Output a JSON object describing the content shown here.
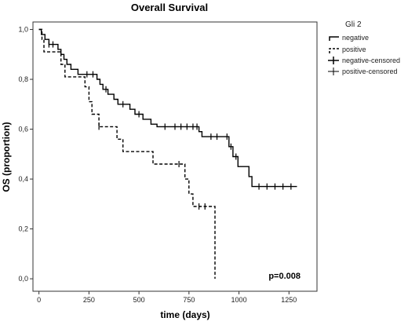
{
  "chart_data": {
    "type": "line",
    "title": "Overall Survival",
    "xlabel": "time (days)",
    "ylabel": "OS (proportion)",
    "xlim": [
      -30,
      1390
    ],
    "ylim": [
      -0.05,
      1.03
    ],
    "x_ticks": [
      0,
      250,
      500,
      750,
      1000,
      1250
    ],
    "y_ticks": [
      {
        "value": 0.0,
        "label": "0,0"
      },
      {
        "value": 0.2,
        "label": "0,2"
      },
      {
        "value": 0.4,
        "label": "0,4"
      },
      {
        "value": 0.6,
        "label": "0,6"
      },
      {
        "value": 0.8,
        "label": "0,8"
      },
      {
        "value": 1.0,
        "label": "1,0"
      }
    ],
    "grid": false,
    "legend": {
      "title": "Gli 2",
      "position": "top-right",
      "entries": [
        "negative",
        "positive",
        "negative-censored",
        "positive-censored"
      ]
    },
    "annotation": "p=0.008",
    "series": [
      {
        "name": "negative",
        "style": "solid",
        "points": [
          [
            0,
            1.0
          ],
          [
            12,
            0.98
          ],
          [
            30,
            0.96
          ],
          [
            50,
            0.94
          ],
          [
            95,
            0.92
          ],
          [
            110,
            0.9
          ],
          [
            125,
            0.88
          ],
          [
            140,
            0.86
          ],
          [
            160,
            0.84
          ],
          [
            195,
            0.82
          ],
          [
            290,
            0.8
          ],
          [
            305,
            0.78
          ],
          [
            320,
            0.76
          ],
          [
            345,
            0.74
          ],
          [
            375,
            0.72
          ],
          [
            395,
            0.7
          ],
          [
            455,
            0.68
          ],
          [
            480,
            0.66
          ],
          [
            520,
            0.64
          ],
          [
            560,
            0.62
          ],
          [
            590,
            0.61
          ],
          [
            800,
            0.59
          ],
          [
            815,
            0.57
          ],
          [
            950,
            0.53
          ],
          [
            970,
            0.49
          ],
          [
            995,
            0.45
          ],
          [
            1050,
            0.41
          ],
          [
            1065,
            0.37
          ],
          [
            1290,
            0.37
          ]
        ],
        "censored": [
          [
            50,
            0.94
          ],
          [
            70,
            0.94
          ],
          [
            240,
            0.82
          ],
          [
            270,
            0.82
          ],
          [
            335,
            0.76
          ],
          [
            420,
            0.7
          ],
          [
            500,
            0.66
          ],
          [
            630,
            0.61
          ],
          [
            680,
            0.61
          ],
          [
            710,
            0.61
          ],
          [
            740,
            0.61
          ],
          [
            770,
            0.61
          ],
          [
            790,
            0.61
          ],
          [
            860,
            0.57
          ],
          [
            890,
            0.57
          ],
          [
            940,
            0.57
          ],
          [
            960,
            0.53
          ],
          [
            985,
            0.49
          ],
          [
            1100,
            0.37
          ],
          [
            1140,
            0.37
          ],
          [
            1180,
            0.37
          ],
          [
            1220,
            0.37
          ],
          [
            1260,
            0.37
          ]
        ]
      },
      {
        "name": "positive",
        "style": "dashed",
        "points": [
          [
            0,
            1.0
          ],
          [
            15,
            0.96
          ],
          [
            25,
            0.91
          ],
          [
            110,
            0.86
          ],
          [
            130,
            0.81
          ],
          [
            230,
            0.77
          ],
          [
            250,
            0.71
          ],
          [
            265,
            0.66
          ],
          [
            300,
            0.61
          ],
          [
            390,
            0.56
          ],
          [
            420,
            0.51
          ],
          [
            570,
            0.46
          ],
          [
            690,
            0.46
          ],
          [
            730,
            0.4
          ],
          [
            750,
            0.34
          ],
          [
            770,
            0.29
          ],
          [
            880,
            0.29
          ],
          [
            880,
            0.0
          ]
        ],
        "censored": [
          [
            300,
            0.61
          ],
          [
            700,
            0.46
          ],
          [
            800,
            0.29
          ],
          [
            830,
            0.29
          ]
        ]
      }
    ]
  }
}
